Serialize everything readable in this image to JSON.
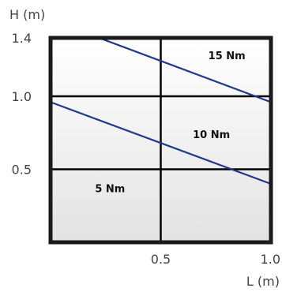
{
  "chart_data": {
    "type": "line",
    "xlabel": "L (m)",
    "ylabel": "H (m)",
    "xlim": [
      0,
      1.0
    ],
    "ylim": [
      0,
      1.4
    ],
    "x_ticks": [
      {
        "value": 0.5,
        "label": "0.5"
      },
      {
        "value": 1.0,
        "label": "1.0"
      }
    ],
    "y_ticks": [
      {
        "value": 0.5,
        "label": "0.5"
      },
      {
        "value": 1.0,
        "label": "1.0"
      },
      {
        "value": 1.4,
        "label": "1.4"
      }
    ],
    "grid": "on",
    "series": [
      {
        "x": [
          0.0,
          1.0
        ],
        "y": [
          0.96,
          0.4
        ]
      },
      {
        "x": [
          0.22,
          1.0
        ],
        "y": [
          1.4,
          0.96
        ]
      }
    ],
    "region_labels": [
      {
        "text": "15 Nm",
        "x": 0.8,
        "y": 1.28
      },
      {
        "text": "10 Nm",
        "x": 0.73,
        "y": 0.74
      },
      {
        "text": "5 Nm",
        "x": 0.27,
        "y": 0.37
      }
    ],
    "colors": {
      "line": "#1f3a8a",
      "frame": "#1a1a1a",
      "grid": "#000000",
      "background_top": "#ffffff",
      "background_bottom": "#e3e3e3"
    }
  }
}
